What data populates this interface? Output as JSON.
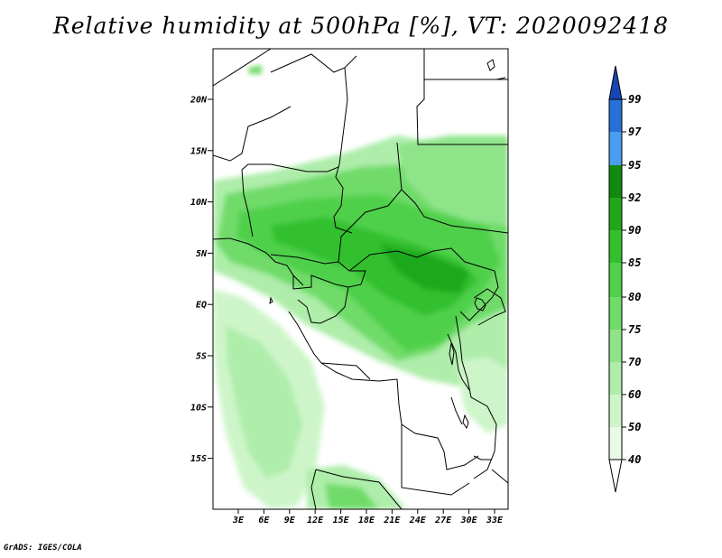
{
  "title": "Relative humidity at 500hPa [%], VT: 2020092418",
  "credit": "GrADS: IGES/COLA",
  "map": {
    "variable": "Relative humidity",
    "level": "500hPa",
    "units": "%",
    "valid_time": "2020092418",
    "lat_ticks": [
      "20N",
      "15N",
      "10N",
      "5N",
      "EQ",
      "5S",
      "10S",
      "15S"
    ],
    "lon_ticks": [
      "3E",
      "6E",
      "9E",
      "12E",
      "15E",
      "18E",
      "21E",
      "24E",
      "27E",
      "30E",
      "33E"
    ]
  },
  "colorbar": {
    "labels": [
      "40",
      "50",
      "60",
      "70",
      "75",
      "80",
      "85",
      "90",
      "92",
      "95",
      "97",
      "99"
    ],
    "colors": [
      "#ffffff",
      "#e8fbe6",
      "#cdf5c9",
      "#aeedaa",
      "#8fe48a",
      "#6fdb69",
      "#50d04b",
      "#32c02d",
      "#1fa81a",
      "#118a0d",
      "#4a9ef0",
      "#2670d8",
      "#1747b5"
    ]
  }
}
